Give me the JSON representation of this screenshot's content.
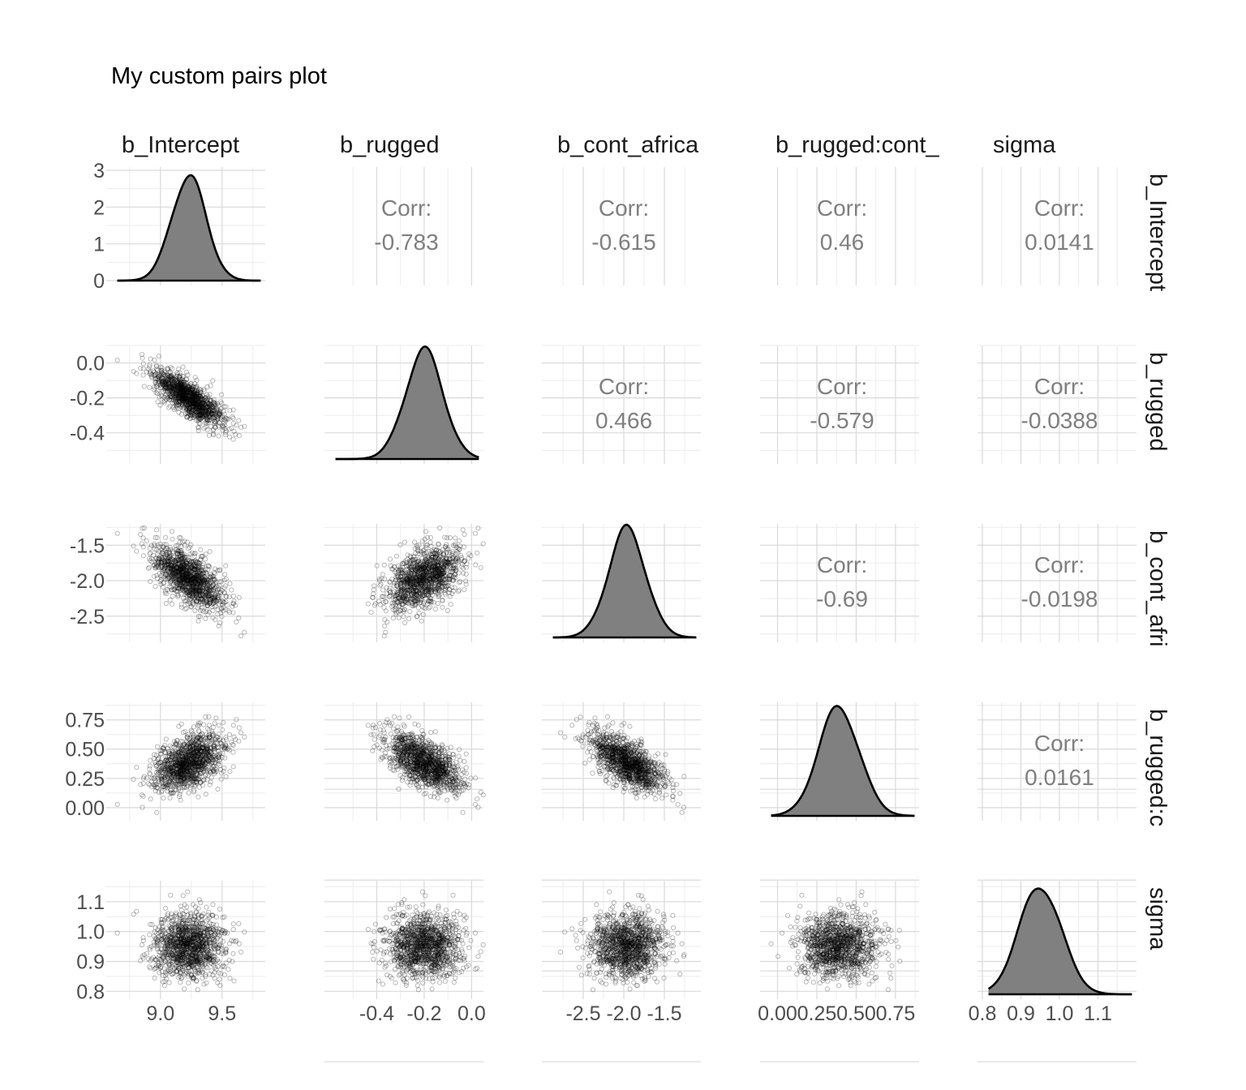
{
  "chart_data": {
    "type": "pairs",
    "title": "My custom pairs plot",
    "variables": [
      "b_Intercept",
      "b_rugged",
      "b_cont_africa",
      "b_rugged:cont_africa",
      "sigma"
    ],
    "column_strip_labels": [
      "b_Intercept",
      "b_rugged",
      "b_cont_africa",
      "b_rugged:cont_",
      "sigma"
    ],
    "row_strip_labels": [
      "b_Intercept",
      "b_rugged",
      "b_cont_afri",
      "b_rugged:c",
      "sigma"
    ],
    "corr_label": "Corr:",
    "correlations": [
      {
        "row": 0,
        "col": 1,
        "value": "-0.783"
      },
      {
        "row": 0,
        "col": 2,
        "value": "-0.615"
      },
      {
        "row": 0,
        "col": 3,
        "value": "0.46"
      },
      {
        "row": 0,
        "col": 4,
        "value": "0.0141"
      },
      {
        "row": 1,
        "col": 2,
        "value": "0.466"
      },
      {
        "row": 1,
        "col": 3,
        "value": "-0.579"
      },
      {
        "row": 1,
        "col": 4,
        "value": "-0.0388"
      },
      {
        "row": 2,
        "col": 3,
        "value": "-0.69"
      },
      {
        "row": 2,
        "col": 4,
        "value": "-0.0198"
      },
      {
        "row": 3,
        "col": 4,
        "value": "0.0161"
      }
    ],
    "means": [
      9.23,
      -0.2,
      -1.96,
      0.39,
      0.95
    ],
    "sds": [
      0.14,
      0.08,
      0.23,
      0.13,
      0.055
    ],
    "x_ranges": [
      [
        8.6,
        9.85
      ],
      [
        -0.6,
        0.05
      ],
      [
        -2.95,
        -1.05
      ],
      [
        -0.08,
        0.9
      ],
      [
        0.8,
        1.2
      ]
    ],
    "y_ranges": [
      [
        8.6,
        9.85
      ],
      [
        -0.55,
        0.1
      ],
      [
        -2.8,
        -1.2
      ],
      [
        -0.07,
        0.9
      ],
      [
        0.79,
        1.17
      ]
    ],
    "x_tick_labels": [
      [
        "9.0",
        "9.5"
      ],
      [
        "-0.4",
        "-0.2",
        "0.0"
      ],
      [
        "-2.5",
        "-2.0",
        "-1.5"
      ],
      [
        "0.00",
        "0.25",
        "0.50",
        "0.75"
      ],
      [
        "0.8",
        "0.9",
        "1.0",
        "1.1"
      ]
    ],
    "y_tick_labels": [
      [
        "0",
        "1",
        "2",
        "3"
      ],
      [
        "-0.4",
        "-0.2",
        "0.0"
      ],
      [
        "-2.5",
        "-2.0",
        "-1.5"
      ],
      [
        "0.00",
        "0.25",
        "0.50",
        "0.75"
      ],
      [
        "0.8",
        "0.9",
        "1.0",
        "1.1"
      ]
    ],
    "density_ylim": [
      0,
      3
    ],
    "points_per_panel": 1200,
    "grid": true,
    "density_fill": "#808080",
    "density_line": "#000000",
    "point_color": "#000000",
    "grid_color": "#d9d9d9"
  }
}
